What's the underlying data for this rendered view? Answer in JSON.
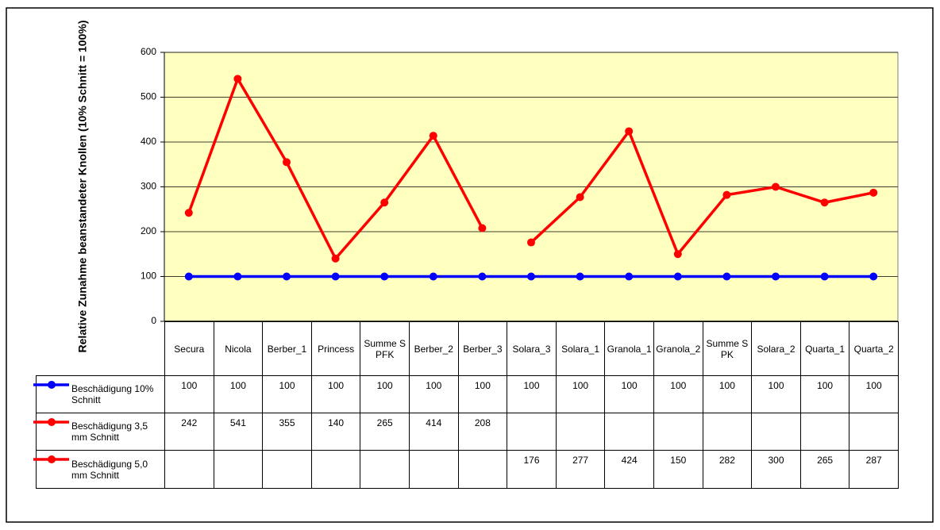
{
  "chart_data": {
    "type": "line",
    "y_label": "Relative Zunahme beanstandeter Knollen (10% Schnitt = 100%)",
    "categories": [
      "Secura",
      "Nicola",
      "Berber_1",
      "Princess",
      "Summe SPFK",
      "Berber_2",
      "Berber_3",
      "Solara_3",
      "Solara_1",
      "Granola_1",
      "Granola_2",
      "Summe SPK",
      "Solara_2",
      "Quarta_1",
      "Quarta_2"
    ],
    "series": [
      {
        "name": "Beschädigung 10% Schnitt",
        "color": "#0000ff",
        "values": [
          100,
          100,
          100,
          100,
          100,
          100,
          100,
          100,
          100,
          100,
          100,
          100,
          100,
          100,
          100
        ]
      },
      {
        "name": "Beschädigung 3,5 mm Schnitt",
        "color": "#ff0000",
        "values": [
          242,
          541,
          355,
          140,
          265,
          414,
          208,
          null,
          null,
          null,
          null,
          null,
          null,
          null,
          null
        ]
      },
      {
        "name": "Beschädigung 5,0 mm Schnitt",
        "color": "#ff0000",
        "values": [
          null,
          null,
          null,
          null,
          null,
          null,
          null,
          176,
          277,
          424,
          150,
          282,
          300,
          265,
          287
        ]
      }
    ],
    "ylim": [
      0,
      600
    ],
    "yticks": [
      0,
      100,
      200,
      300,
      400,
      500,
      600
    ],
    "grid": true,
    "plot_background": "#ffffc0"
  }
}
